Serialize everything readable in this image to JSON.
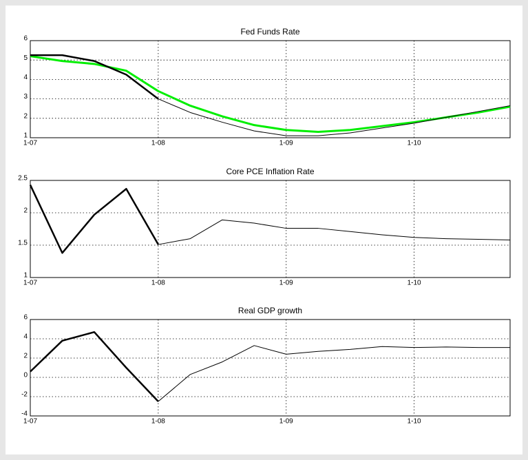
{
  "chart_data": [
    {
      "type": "line",
      "title": "Fed Funds Rate",
      "x": [
        2007,
        2007.25,
        2007.5,
        2007.75,
        2008,
        2008.25,
        2008.5,
        2008.75,
        2009,
        2009.25,
        2009.5,
        2009.75,
        2010,
        2010.25,
        2010.5,
        2010.75
      ],
      "xlim": [
        2007,
        2010.75
      ],
      "xticks": [
        {
          "value": 2007,
          "label": "1-07"
        },
        {
          "value": 2008,
          "label": "1-08"
        },
        {
          "value": 2009,
          "label": "1-09"
        },
        {
          "value": 2010,
          "label": "1-10"
        }
      ],
      "ylim": [
        1,
        6
      ],
      "yticks": [
        1,
        2,
        3,
        4,
        5,
        6
      ],
      "grid": true,
      "series": [
        {
          "color": "#00ee00",
          "width": 3,
          "values": [
            5.2,
            4.95,
            4.8,
            4.45,
            3.4,
            2.65,
            2.1,
            1.65,
            1.4,
            1.3,
            1.4,
            1.6,
            1.8,
            2.05,
            2.3,
            2.6
          ]
        },
        {
          "color": "#000000",
          "width": 2.5,
          "values": [
            5.25,
            5.25,
            4.95,
            4.25,
            3.0,
            null,
            null,
            null,
            null,
            null,
            null,
            null,
            null,
            null,
            null,
            null
          ]
        },
        {
          "color": "#000000",
          "width": 1,
          "values": [
            null,
            null,
            null,
            null,
            3.0,
            2.3,
            1.8,
            1.35,
            1.1,
            1.1,
            1.25,
            1.5,
            1.75,
            2.05,
            2.35,
            2.65
          ]
        }
      ]
    },
    {
      "type": "line",
      "title": "Core PCE Inflation Rate",
      "x": [
        2007,
        2007.25,
        2007.5,
        2007.75,
        2008,
        2008.25,
        2008.5,
        2008.75,
        2009,
        2009.25,
        2009.5,
        2009.75,
        2010,
        2010.25,
        2010.5,
        2010.75
      ],
      "xlim": [
        2007,
        2010.75
      ],
      "xticks": [
        {
          "value": 2007,
          "label": "1-07"
        },
        {
          "value": 2008,
          "label": "1-08"
        },
        {
          "value": 2009,
          "label": "1-09"
        },
        {
          "value": 2010,
          "label": "1-10"
        }
      ],
      "ylim": [
        1,
        2.5
      ],
      "yticks": [
        1,
        1.5,
        2,
        2.5
      ],
      "grid": true,
      "series": [
        {
          "color": "#000000",
          "width": 2.5,
          "values": [
            2.43,
            1.38,
            1.97,
            2.37,
            1.51,
            null,
            null,
            null,
            null,
            null,
            null,
            null,
            null,
            null,
            null,
            null
          ]
        },
        {
          "color": "#000000",
          "width": 1,
          "values": [
            null,
            null,
            null,
            null,
            1.51,
            1.6,
            1.89,
            1.84,
            1.76,
            1.76,
            1.71,
            1.66,
            1.62,
            1.6,
            1.59,
            1.58
          ]
        }
      ]
    },
    {
      "type": "line",
      "title": "Real GDP growth",
      "x": [
        2007,
        2007.25,
        2007.5,
        2007.75,
        2008,
        2008.25,
        2008.5,
        2008.75,
        2009,
        2009.25,
        2009.5,
        2009.75,
        2010,
        2010.25,
        2010.5,
        2010.75
      ],
      "xlim": [
        2007,
        2010.75
      ],
      "xticks": [
        {
          "value": 2007,
          "label": "1-07"
        },
        {
          "value": 2008,
          "label": "1-08"
        },
        {
          "value": 2009,
          "label": "1-09"
        },
        {
          "value": 2010,
          "label": "1-10"
        }
      ],
      "ylim": [
        -4,
        6
      ],
      "yticks": [
        -4,
        -2,
        0,
        2,
        4,
        6
      ],
      "grid": true,
      "series": [
        {
          "color": "#000000",
          "width": 2.5,
          "values": [
            0.6,
            3.8,
            4.7,
            1.0,
            -2.5,
            null,
            null,
            null,
            null,
            null,
            null,
            null,
            null,
            null,
            null,
            null
          ]
        },
        {
          "color": "#000000",
          "width": 1,
          "values": [
            null,
            null,
            null,
            null,
            -2.5,
            0.3,
            1.6,
            3.3,
            2.4,
            2.7,
            2.9,
            3.2,
            3.1,
            3.15,
            3.1,
            3.1
          ]
        }
      ]
    }
  ]
}
